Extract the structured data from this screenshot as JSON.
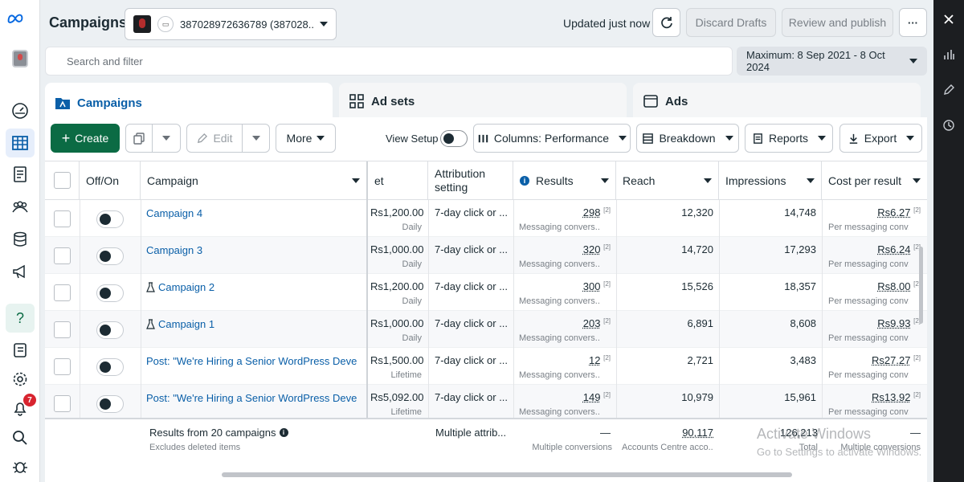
{
  "colors": {
    "accent": "#0a5fa8",
    "create": "#0b6b44",
    "badge": "#d8242f",
    "right_panel": "#1c1e21"
  },
  "leftnav": {
    "items": [
      {
        "icon": "meta-logo"
      },
      {
        "icon": "account-avatar"
      },
      {
        "icon": "dashboard-gauge-icon"
      },
      {
        "icon": "table-grid-icon",
        "active": true
      },
      {
        "icon": "document-icon"
      },
      {
        "icon": "audience-icon"
      },
      {
        "icon": "database-icon"
      },
      {
        "icon": "megaphone-icon"
      },
      {
        "icon": "help-icon"
      },
      {
        "icon": "notebook-icon"
      },
      {
        "icon": "gear-icon"
      },
      {
        "icon": "bell-icon"
      },
      {
        "icon": "search-icon"
      },
      {
        "icon": "bug-icon"
      }
    ],
    "notifications_count": "7"
  },
  "header": {
    "title": "Campaigns",
    "account": "387028972636789 (387028...",
    "updated": "Updated just now",
    "discard": "Discard Drafts",
    "review": "Review and publish",
    "more": "···"
  },
  "search": {
    "placeholder": "Search and filter",
    "date_range": "Maximum: 8 Sep 2021 - 8 Oct 2024"
  },
  "level_tabs": {
    "campaigns": "Campaigns",
    "adsets": "Ad sets",
    "ads": "Ads"
  },
  "toolbar": {
    "create": "Create",
    "edit": "Edit",
    "more": "More",
    "view_setup": "View Setup",
    "columns": "Columns: Performance",
    "breakdown": "Breakdown",
    "reports": "Reports",
    "export": "Export"
  },
  "table": {
    "headers": {
      "off_on": "Off/On",
      "campaign": "Campaign",
      "budget": "et",
      "attribution": "Attribution setting",
      "results": "Results",
      "reach": "Reach",
      "impressions": "Impressions",
      "cost": "Cost per result"
    },
    "rows": [
      {
        "name": "Campaign 4",
        "flask": false,
        "budget": "Rs1,200.00",
        "budget_type": "Daily",
        "attribution": "7-day click or ...",
        "results": "298",
        "results_sub": "Messaging convers...",
        "reach": "12,320",
        "impressions": "14,748",
        "cost": "Rs6.27",
        "cost_sub": "Per messaging conv..."
      },
      {
        "name": "Campaign 3",
        "flask": false,
        "budget": "Rs1,000.00",
        "budget_type": "Daily",
        "attribution": "7-day click or ...",
        "results": "320",
        "results_sub": "Messaging convers...",
        "reach": "14,720",
        "impressions": "17,293",
        "cost": "Rs6.24",
        "cost_sub": "Per messaging conv..."
      },
      {
        "name": "Campaign 2",
        "flask": true,
        "budget": "Rs1,200.00",
        "budget_type": "Daily",
        "attribution": "7-day click or ...",
        "results": "300",
        "results_sub": "Messaging convers...",
        "reach": "15,526",
        "impressions": "18,357",
        "cost": "Rs8.00",
        "cost_sub": "Per messaging conv..."
      },
      {
        "name": "Campaign 1",
        "flask": true,
        "budget": "Rs1,000.00",
        "budget_type": "Daily",
        "attribution": "7-day click or ...",
        "results": "203",
        "results_sub": "Messaging convers...",
        "reach": "6,891",
        "impressions": "8,608",
        "cost": "Rs9.93",
        "cost_sub": "Per messaging conv..."
      },
      {
        "name": "Post: \"We're Hiring a Senior WordPress Develo...",
        "flask": false,
        "budget": "Rs1,500.00",
        "budget_type": "Lifetime",
        "attribution": "7-day click or ...",
        "results": "12",
        "results_sub": "Messaging convers...",
        "reach": "2,721",
        "impressions": "3,483",
        "cost": "Rs27.27",
        "cost_sub": "Per messaging conv..."
      },
      {
        "name": "Post: \"We're Hiring a Senior WordPress Develo...",
        "flask": false,
        "budget": "Rs5,092.00",
        "budget_type": "Lifetime",
        "attribution": "7-day click or ...",
        "results": "149",
        "results_sub": "Messaging convers...",
        "reach": "10,979",
        "impressions": "15,961",
        "cost": "Rs13.92",
        "cost_sub": "Per messaging conv..."
      }
    ],
    "footnote_mark": "[2]",
    "summary": {
      "label": "Results from 20 campaigns",
      "sub": "Excludes deleted items",
      "attribution": "Multiple attrib...",
      "results": "—",
      "results_sub": "Multiple conversions",
      "reach": "90,117",
      "reach_sub": "Accounts Centre acco...",
      "impressions": "126,213",
      "impressions_sub": "Total",
      "cost": "—",
      "cost_sub": "Multiple conversions"
    }
  },
  "watermark": {
    "line1": "Activate Windows",
    "line2": "Go to Settings to activate Windows."
  }
}
